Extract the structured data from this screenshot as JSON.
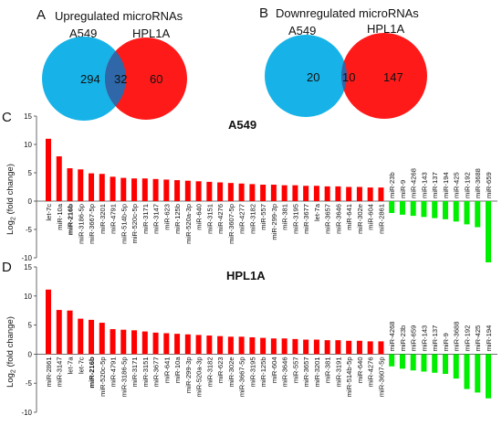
{
  "venn_panels": [
    {
      "letter": "A",
      "title": "Upregulated microRNAs",
      "left_label": "A549",
      "right_label": "HPL1A",
      "left_only": "294",
      "overlap": "32",
      "right_only": "60",
      "colors": {
        "left": "#17b3e8",
        "right": "#ff1a1a",
        "overlap": "#2f67a8"
      }
    },
    {
      "letter": "B",
      "title": "Downregulated microRNAs",
      "left_label": "A549",
      "right_label": "HPL1A",
      "left_only": "20",
      "overlap": "10",
      "right_only": "147",
      "colors": {
        "left": "#17b3e8",
        "right": "#ff1a1a",
        "overlap": "#2f67a8"
      }
    }
  ],
  "chart_data": [
    {
      "letter": "C",
      "type": "bar",
      "title": "A549",
      "ylabel_main": "Log",
      "ylabel_sub": "2",
      "ylabel_rest": " (fold change)",
      "ylim": [
        -10,
        15
      ],
      "yticks": [
        -10,
        -5,
        0,
        5,
        10,
        15
      ],
      "colors": {
        "up": "#ff0000",
        "down": "#00ee00"
      },
      "bold_categories": [
        "miR-216b"
      ],
      "categories": [
        "let-7c",
        "miR-10a",
        "miR-216b",
        "miR-3186-5p",
        "miR-3667-5p",
        "miR-3201",
        "miR-4791",
        "miR-514b-5p",
        "miR-520c-5p",
        "miR-3171",
        "miR-3147",
        "miR-623",
        "miR-125b",
        "miR-520a-3p",
        "miR-640",
        "miR-3151",
        "miR-4276",
        "miR-3607-5p",
        "miR-4277",
        "miR-3182",
        "miR-557",
        "miR-299-3p",
        "miR-381",
        "miR-3195",
        "miR-3677",
        "let-7a",
        "miR-3657",
        "miR-3646",
        "miR-641",
        "miR-302e",
        "miR-604",
        "miR-2861",
        "miR-23b",
        "miR-9",
        "miR-4268",
        "miR-143",
        "miR-137",
        "miR-194",
        "miR-425",
        "miR-192",
        "miR-3688",
        "miR-659"
      ],
      "values": [
        11,
        7.9,
        5.8,
        5.6,
        4.9,
        4.8,
        4.3,
        4.1,
        4.0,
        4.0,
        3.9,
        3.8,
        3.7,
        3.6,
        3.5,
        3.4,
        3.3,
        3.2,
        3.1,
        3.0,
        2.9,
        2.9,
        2.8,
        2.8,
        2.7,
        2.7,
        2.6,
        2.6,
        2.5,
        2.5,
        2.4,
        2.4,
        -2.1,
        -2.4,
        -2.6,
        -2.8,
        -3.0,
        -3.2,
        -3.6,
        -4.1,
        -4.6,
        -10.8
      ]
    },
    {
      "letter": "D",
      "type": "bar",
      "title": "HPL1A",
      "ylabel_main": "Log",
      "ylabel_sub": "2",
      "ylabel_rest": " (fold change)",
      "ylim": [
        -10,
        15
      ],
      "yticks": [
        -10,
        -5,
        0,
        5,
        10,
        15
      ],
      "colors": {
        "up": "#ff0000",
        "down": "#00ee00"
      },
      "bold_categories": [
        "miR-216b"
      ],
      "categories": [
        "miR-2861",
        "miR-3147",
        "let-7a",
        "let-7c",
        "miR-216b",
        "miR-520c-5p",
        "miR-4791",
        "miR-3186-5p",
        "miR-3171",
        "miR-3151",
        "miR-3677",
        "miR-641",
        "miR-10a",
        "miR-299-3p",
        "miR-520a-3p",
        "miR-3182",
        "miR-623",
        "miR-302e",
        "miR-3667-5p",
        "miR-3195",
        "miR-125b",
        "miR-604",
        "miR-3646",
        "miR-557",
        "miR-3657",
        "miR-3201",
        "miR-381",
        "miR-3191",
        "miR-514b-5p",
        "miR-640",
        "miR-4276",
        "miR-3607-5p",
        "miR-4268",
        "miR-23b",
        "miR-659",
        "miR-143",
        "miR-137",
        "miR-9",
        "miR-3688",
        "miR-192",
        "miR-425",
        "miR-194"
      ],
      "values": [
        11.1,
        7.6,
        7.5,
        6.1,
        5.9,
        5.4,
        4.3,
        4.2,
        4.1,
        3.9,
        3.7,
        3.6,
        3.5,
        3.4,
        3.3,
        3.2,
        3.1,
        3.0,
        3.0,
        2.9,
        2.8,
        2.7,
        2.7,
        2.6,
        2.5,
        2.5,
        2.4,
        2.4,
        2.3,
        2.3,
        2.2,
        2.2,
        -2.1,
        -2.5,
        -2.8,
        -3.0,
        -3.2,
        -3.4,
        -4.2,
        -6.0,
        -6.6,
        -7.6
      ]
    }
  ]
}
